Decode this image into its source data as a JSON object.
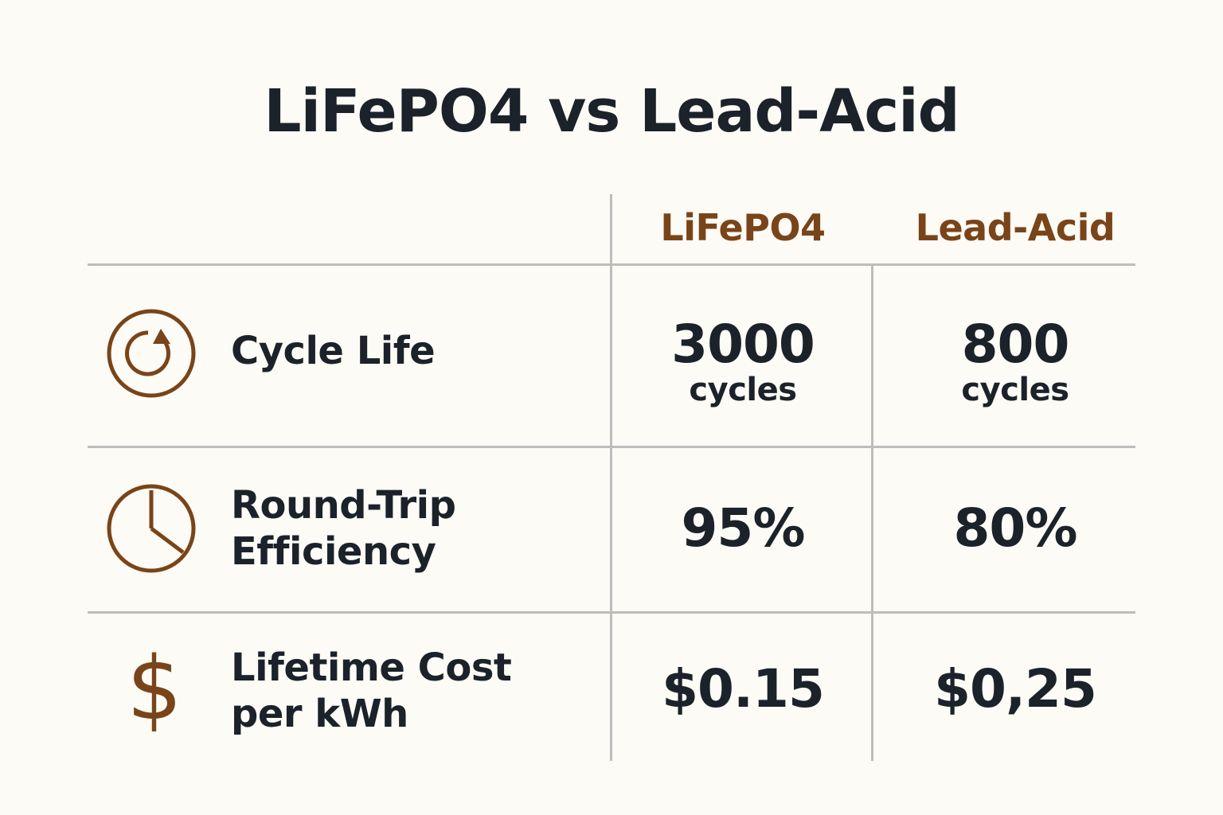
{
  "title": "LiFePO4 vs Lead-Acid",
  "columns": [
    "LiFePO4",
    "Lead-Acid"
  ],
  "accent_color": "#7a4419",
  "rows": [
    {
      "icon": "cycle-arrow-icon",
      "label_lines": [
        "Cycle Life"
      ],
      "lifepo4": {
        "value": "3000",
        "unit": "cycles"
      },
      "lead_acid": {
        "value": "800",
        "unit": "cycles"
      }
    },
    {
      "icon": "clock-gauge-icon",
      "label_lines": [
        "Round-Trip",
        "Efficiency"
      ],
      "lifepo4": {
        "value": "95%"
      },
      "lead_acid": {
        "value": "80%"
      }
    },
    {
      "icon": "dollar-icon",
      "icon_glyph": "$",
      "label_lines": [
        "Lifetime Cost",
        "per kWh"
      ],
      "lifepo4": {
        "value": "$0.15"
      },
      "lead_acid": {
        "value": "$0,25"
      }
    }
  ]
}
